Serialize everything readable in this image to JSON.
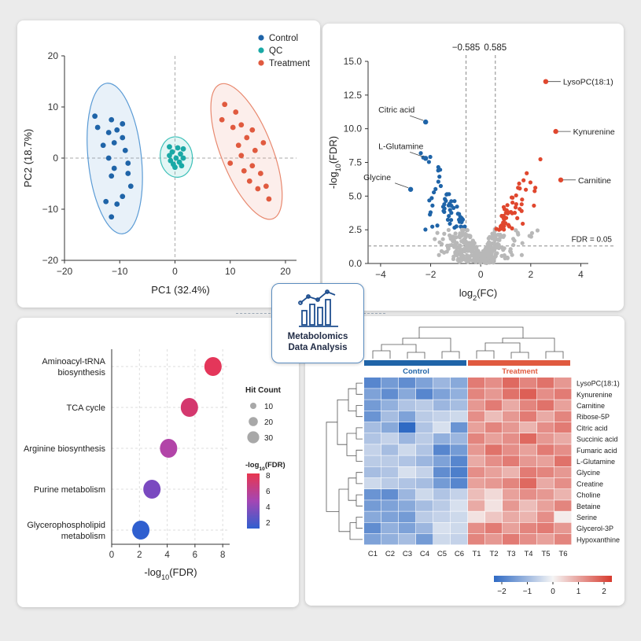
{
  "badge": {
    "line1": "Metabolomics",
    "line2": "Data Analysis",
    "icon": "bar-line-chart-icon"
  },
  "chart_data": [
    {
      "type": "scatter",
      "xlabel": "PC1 (32.4%)",
      "ylabel": "PC2 (18.7%)",
      "xlim": [
        -20,
        22
      ],
      "ylim": [
        -20,
        20
      ],
      "xticks": [
        -20,
        -10,
        0,
        10,
        20
      ],
      "yticks": [
        -20,
        -10,
        0,
        10,
        20
      ],
      "legend_position": "top-right",
      "series": [
        {
          "name": "Control",
          "color": "#1f64a8",
          "ellipse_color": "#5b9bd5",
          "points": [
            [
              -14.5,
              8.2
            ],
            [
              -11.5,
              7.5
            ],
            [
              -9.5,
              6.7
            ],
            [
              -14,
              6
            ],
            [
              -10.5,
              5.5
            ],
            [
              -12,
              5
            ],
            [
              -9.5,
              4
            ],
            [
              -11,
              3
            ],
            [
              -13,
              2.5
            ],
            [
              -9,
              1.5
            ],
            [
              -12,
              0
            ],
            [
              -8.5,
              -1
            ],
            [
              -11,
              -2
            ],
            [
              -8.5,
              -3
            ],
            [
              -11.5,
              -3.5
            ],
            [
              -8,
              -5.5
            ],
            [
              -9.5,
              -7.5
            ],
            [
              -12.5,
              -8.5
            ],
            [
              -10.5,
              -9
            ],
            [
              -11.5,
              -11.5
            ]
          ]
        },
        {
          "name": "QC",
          "color": "#1aa9a6",
          "ellipse_color": "#3cc0b8",
          "points": [
            [
              0.5,
              2
            ],
            [
              1.5,
              1.8
            ],
            [
              -0.5,
              1.2
            ],
            [
              1,
              0.8
            ],
            [
              -1,
              0.5
            ],
            [
              0.2,
              0
            ],
            [
              1.5,
              0
            ],
            [
              -0.8,
              -0.5
            ],
            [
              0.8,
              -0.8
            ],
            [
              -0.3,
              -1.2
            ],
            [
              1.2,
              -1.5
            ],
            [
              0,
              -1.8
            ],
            [
              -1,
              2.2
            ]
          ]
        },
        {
          "name": "Treatment",
          "color": "#e05a3f",
          "ellipse_color": "#e8886e",
          "points": [
            [
              9,
              10.5
            ],
            [
              11,
              9
            ],
            [
              8.5,
              7.5
            ],
            [
              12,
              6.5
            ],
            [
              10.5,
              6
            ],
            [
              14,
              5.5
            ],
            [
              13,
              4
            ],
            [
              16,
              3
            ],
            [
              11.5,
              2.5
            ],
            [
              14.5,
              1.5
            ],
            [
              12,
              0.5
            ],
            [
              10,
              -1
            ],
            [
              14,
              -1.5
            ],
            [
              12.5,
              -2.5
            ],
            [
              15.5,
              -3
            ],
            [
              13.5,
              -4.5
            ],
            [
              16.5,
              -5.5
            ],
            [
              15,
              -6
            ],
            [
              17,
              -8
            ]
          ]
        }
      ]
    },
    {
      "type": "scatter",
      "xlabel": "log2(FC)",
      "ylabel": "-log10(FDR)",
      "xlim": [
        -4.5,
        4.3
      ],
      "ylim": [
        0,
        15
      ],
      "xticks": [
        -4,
        -2,
        0,
        2,
        4
      ],
      "yticks": [
        0,
        2.5,
        5,
        7.5,
        10,
        12.5,
        15
      ],
      "thresholds": {
        "fc_low": -0.585,
        "fc_high": 0.585,
        "fdr": 1.3,
        "fc_low_label": "−0.585",
        "fc_high_label": "0.585",
        "fdr_label": "FDR = 0.05"
      },
      "colors": {
        "down": "#1f64a8",
        "up": "#e0472e",
        "ns": "#b8b8b8"
      },
      "labels": [
        {
          "name": "Citric acid",
          "x": -2.2,
          "y": 10.5
        },
        {
          "name": "L-Glutamine",
          "x": -2.2,
          "y": 7.8
        },
        {
          "name": "Glycine",
          "x": -2.8,
          "y": 5.5
        },
        {
          "name": "LysoPC(18:1)",
          "x": 2.6,
          "y": 13.5
        },
        {
          "name": "Kynurenine",
          "x": 3.0,
          "y": 9.8
        },
        {
          "name": "Carnitine",
          "x": 3.2,
          "y": 6.2
        }
      ]
    },
    {
      "type": "scatter",
      "xlabel": "-log10(FDR)",
      "xlim": [
        0,
        8.5
      ],
      "xticks": [
        0,
        2,
        4,
        6,
        8
      ],
      "categories": [
        "Aminoacyl-tRNA biosynthesis",
        "TCA cycle",
        "Arginine biosynthesis",
        "Purine metabolism",
        "Glycerophospholipid metabolism"
      ],
      "category_lines": [
        [
          "Aminoacyl-tRNA",
          "biosynthesis"
        ],
        [
          "TCA cycle"
        ],
        [
          "Arginine biosynthesis"
        ],
        [
          "Purine metabolism"
        ],
        [
          "Glycerophospholipid",
          "metabolism"
        ]
      ],
      "values": [
        7.3,
        5.6,
        4.1,
        2.9,
        2.1
      ],
      "point_colors": [
        "#e4365a",
        "#d4386e",
        "#b244a8",
        "#7a49c0",
        "#2f5fcf"
      ],
      "size_legend": {
        "title": "Hit Count",
        "values": [
          10,
          20,
          30
        ]
      },
      "color_legend": {
        "title": "-log10(FDR)",
        "ticks": [
          8,
          6,
          4,
          2
        ]
      }
    },
    {
      "type": "heatmap",
      "groups": [
        {
          "name": "Control",
          "color": "#1f64a8"
        },
        {
          "name": "Treatment",
          "color": "#e05a3f"
        }
      ],
      "columns": [
        "C1",
        "C2",
        "C3",
        "C4",
        "C5",
        "C6",
        "T1",
        "T2",
        "T3",
        "T4",
        "T5",
        "T6"
      ],
      "rows": [
        "LysoPC(18:1)",
        "Kynurenine",
        "Carnitine",
        "Ribose-5P",
        "Citric acid",
        "Succinic acid",
        "Fumaric acid",
        "L-Glutamine",
        "Glycine",
        "Creatine",
        "Choline",
        "Betaine",
        "Serine",
        "Glycerol-3P",
        "Hypoxanthine"
      ],
      "values": [
        [
          -1.6,
          -1.3,
          -1.5,
          -1.2,
          -0.9,
          -1.1,
          1.3,
          1.1,
          1.5,
          1.2,
          1.4,
          1.0
        ],
        [
          -1.2,
          -1.5,
          -1.1,
          -1.6,
          -1.2,
          -1.0,
          1.2,
          1.0,
          1.4,
          1.6,
          1.1,
          1.3
        ],
        [
          -1.3,
          -1.0,
          -0.7,
          -0.6,
          -0.9,
          -0.8,
          1.0,
          1.3,
          0.8,
          1.2,
          1.4,
          0.9
        ],
        [
          -1.4,
          -0.8,
          -1.2,
          -0.6,
          -0.5,
          -0.4,
          1.1,
          0.6,
          1.0,
          1.3,
          0.8,
          1.2
        ],
        [
          -0.8,
          -1.1,
          -2.0,
          -0.7,
          -0.3,
          -1.4,
          0.9,
          1.2,
          1.0,
          0.7,
          1.1,
          1.3
        ],
        [
          -0.7,
          -0.5,
          -0.9,
          -0.6,
          -1.0,
          -0.9,
          1.2,
          0.9,
          1.1,
          1.5,
          1.0,
          0.8
        ],
        [
          -0.5,
          -0.8,
          -0.4,
          -0.7,
          -1.6,
          -1.3,
          1.0,
          1.4,
          1.1,
          0.9,
          1.3,
          1.1
        ],
        [
          -0.6,
          -0.6,
          -0.7,
          -0.9,
          -1.2,
          -1.6,
          0.8,
          1.1,
          1.3,
          1.0,
          0.9,
          1.4
        ],
        [
          -0.8,
          -0.7,
          -0.3,
          -0.5,
          -1.5,
          -1.7,
          1.1,
          0.9,
          0.7,
          1.3,
          1.2,
          1.0
        ],
        [
          -0.4,
          -0.6,
          -0.7,
          -0.8,
          -1.3,
          -1.6,
          0.9,
          1.0,
          1.2,
          1.5,
          0.8,
          1.1
        ],
        [
          -1.4,
          -1.5,
          -0.9,
          -0.4,
          -0.7,
          -0.5,
          0.6,
          0.3,
          0.9,
          1.1,
          1.0,
          0.7
        ],
        [
          -1.3,
          -1.2,
          -1.1,
          -0.8,
          -0.6,
          -0.3,
          0.8,
          0.2,
          1.0,
          0.6,
          0.9,
          1.2
        ],
        [
          -1.1,
          -1.2,
          -1.3,
          -0.6,
          -0.5,
          -0.4,
          0.2,
          0.5,
          0.8,
          0.7,
          1.1,
          0.1
        ],
        [
          -1.5,
          -1.0,
          -1.2,
          -0.9,
          -0.3,
          -0.4,
          1.1,
          1.3,
          0.9,
          1.2,
          1.3,
          1.0
        ],
        [
          -1.2,
          -1.0,
          -0.8,
          -1.3,
          -0.4,
          -0.5,
          1.2,
          1.0,
          1.3,
          1.1,
          0.9,
          1.2
        ]
      ],
      "colorbar": {
        "range": [
          -2,
          2
        ],
        "ticks": [
          "−2",
          "−1",
          "0",
          "1",
          "2"
        ],
        "colors": [
          "#2f6ac4",
          "#f5f5f5",
          "#d73a2e"
        ]
      }
    }
  ]
}
